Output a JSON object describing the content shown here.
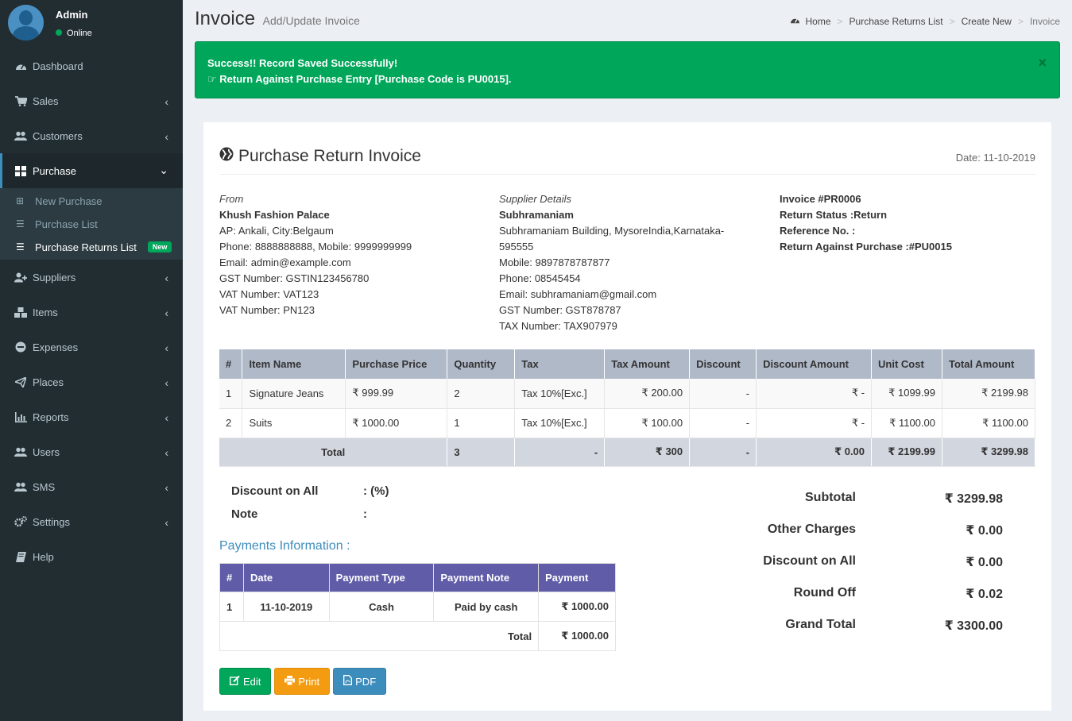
{
  "user": {
    "name": "Admin",
    "status": "Online"
  },
  "menu": [
    {
      "label": "Dashboard",
      "icon": "dashboard-icon",
      "chevron": false
    },
    {
      "label": "Sales",
      "icon": "cart-icon",
      "chevron": true
    },
    {
      "label": "Customers",
      "icon": "users-icon",
      "chevron": true
    },
    {
      "label": "Purchase",
      "icon": "grid-icon",
      "chevron": true,
      "active": true
    },
    {
      "label": "Suppliers",
      "icon": "user-plus-icon",
      "chevron": true
    },
    {
      "label": "Items",
      "icon": "cubes-icon",
      "chevron": true
    },
    {
      "label": "Expenses",
      "icon": "minus-circle-icon",
      "chevron": true
    },
    {
      "label": "Places",
      "icon": "paper-plane-icon",
      "chevron": true
    },
    {
      "label": "Reports",
      "icon": "bar-chart-icon",
      "chevron": true
    },
    {
      "label": "Users",
      "icon": "users-icon",
      "chevron": true
    },
    {
      "label": "SMS",
      "icon": "users-icon",
      "chevron": true
    },
    {
      "label": "Settings",
      "icon": "gears-icon",
      "chevron": true
    },
    {
      "label": "Help",
      "icon": "book-icon",
      "chevron": false
    }
  ],
  "submenu": [
    {
      "label": "New Purchase",
      "icon": "plus-square-icon"
    },
    {
      "label": "Purchase List",
      "icon": "list-icon"
    },
    {
      "label": "Purchase Returns List",
      "icon": "list-icon",
      "badge": "New",
      "active": true
    }
  ],
  "header": {
    "title": "Invoice",
    "subtitle": "Add/Update Invoice"
  },
  "breadcrumb": [
    "Home",
    "Purchase Returns List",
    "Create New",
    "Invoice"
  ],
  "alert": {
    "line1": "Success!! Record Saved Successfully!",
    "line2": "Return Against Purchase Entry [Purchase Code is PU0015].",
    "close": "×"
  },
  "invoice": {
    "title": "Purchase Return Invoice",
    "date": "Date: 11-10-2019",
    "from": {
      "label": "From",
      "name": "Khush Fashion Palace",
      "lines": [
        "AP: Ankali, City:Belgaum",
        "Phone: 8888888888, Mobile: 9999999999",
        "Email: admin@example.com",
        "GST Number: GSTIN123456780",
        "VAT Number: VAT123",
        "VAT Number: PN123"
      ]
    },
    "supplier": {
      "label": "Supplier Details",
      "name": "Subhramaniam",
      "lines": [
        "Subhramaniam Building, MysoreIndia,Karnataka-",
        "595555",
        "Mobile: 9897878787877",
        "Phone: 08545454",
        "Email: subhramaniam@gmail.com",
        "GST Number: GST878787",
        "TAX Number: TAX907979"
      ]
    },
    "meta": [
      "Invoice #PR0006",
      "Return Status :Return",
      "Reference No. :",
      "Return Against Purchase :#PU0015"
    ]
  },
  "items": {
    "headers": [
      "#",
      "Item Name",
      "Purchase Price",
      "Quantity",
      "Tax",
      "Tax Amount",
      "Discount",
      "Discount Amount",
      "Unit Cost",
      "Total Amount"
    ],
    "rows": [
      [
        "1",
        "Signature Jeans",
        "₹ 999.99",
        "2",
        "Tax 10%[Exc.]",
        "₹ 200.00",
        "-",
        "₹ -",
        "₹ 1099.99",
        "₹ 2199.98"
      ],
      [
        "2",
        "Suits",
        "₹ 1000.00",
        "1",
        "Tax 10%[Exc.]",
        "₹ 100.00",
        "-",
        "₹ -",
        "₹ 1100.00",
        "₹ 1100.00"
      ]
    ],
    "total": [
      "Total",
      "3",
      "-",
      "₹ 300",
      "-",
      "₹ 0.00",
      "₹ 2199.99",
      "₹ 3299.98"
    ]
  },
  "misc": {
    "discount_label": "Discount on All",
    "discount_value": ": (%)",
    "note_label": "Note",
    "note_value": ":"
  },
  "payments": {
    "title": "Payments Information :",
    "headers": [
      "#",
      "Date",
      "Payment Type",
      "Payment Note",
      "Payment"
    ],
    "row": [
      "1",
      "11-10-2019",
      "Cash",
      "Paid by cash",
      "₹ 1000.00"
    ],
    "total_label": "Total",
    "total_value": "₹ 1000.00"
  },
  "buttons": {
    "edit": "Edit",
    "print": "Print",
    "pdf": "PDF"
  },
  "totals": [
    {
      "label": "Subtotal",
      "value": "₹ 3299.98"
    },
    {
      "label": "Other Charges",
      "value": "₹ 0.00"
    },
    {
      "label": "Discount on All",
      "value": "₹ 0.00"
    },
    {
      "label": "Round Off",
      "value": "₹ 0.02"
    },
    {
      "label": "Grand Total",
      "value": "₹ 3300.00"
    }
  ],
  "colors": {
    "sidebar": "#222d32",
    "success": "#00a65a",
    "warning": "#f39c12",
    "primary": "#3c8dbc",
    "purple": "#605ca8"
  }
}
